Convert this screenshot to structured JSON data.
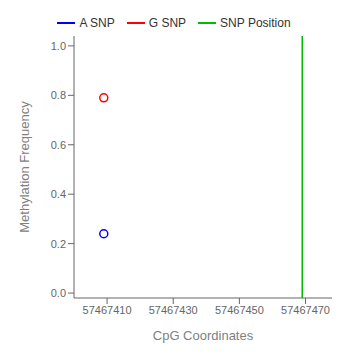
{
  "chart_data": {
    "type": "scatter",
    "xlabel": "CpG Coordinates",
    "ylabel": "Methylation Frequency",
    "xlim": [
      57467400,
      57467478
    ],
    "ylim": [
      -0.02,
      1.04
    ],
    "xticks": [
      57467410,
      57467430,
      57467450,
      57467470
    ],
    "yticks": [
      {
        "value": 0.0,
        "label": "0.0"
      },
      {
        "value": 0.2,
        "label": "0.2"
      },
      {
        "value": 0.4,
        "label": "0.4"
      },
      {
        "value": 0.6,
        "label": "0.6"
      },
      {
        "value": 0.8,
        "label": "0.8"
      },
      {
        "value": 1.0,
        "label": "1.0"
      }
    ],
    "legend": "top",
    "series": [
      {
        "name": "A SNP",
        "color": "blue",
        "marker": "open_circle",
        "x": [
          57467409
        ],
        "values": [
          0.24
        ]
      },
      {
        "name": "G SNP",
        "color": "red",
        "marker": "open_circle",
        "x": [
          57467409
        ],
        "values": [
          0.79
        ]
      },
      {
        "name": "SNP Position",
        "type": "vline",
        "color": "#00bb00",
        "x": [
          57467469
        ]
      }
    ]
  }
}
